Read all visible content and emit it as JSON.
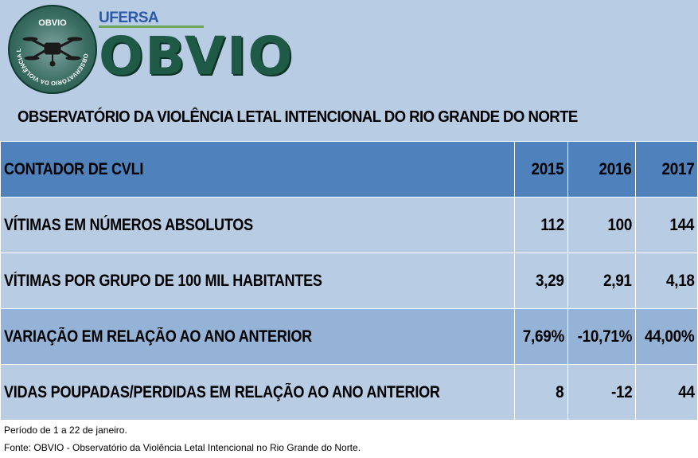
{
  "header": {
    "emblem_text": "OBVIO",
    "emblem_ring_text": "OBSERVATÓRIO DA VIOLÊNCIA LETAL INTENCIONAL",
    "ufersa": "UFERSA",
    "logo": "OBVIO",
    "title": "OBSERVATÓRIO DA VIOLÊNCIA LETAL INTENCIONAL DO RIO GRANDE DO NORTE"
  },
  "table": {
    "headers": [
      "CONTADOR DE CVLI",
      "2015",
      "2016",
      "2017"
    ],
    "rows": [
      {
        "label": "VÍTIMAS EM NÚMEROS ABSOLUTOS",
        "v2015": "112",
        "v2016": "100",
        "v2017": "144"
      },
      {
        "label": "VÍTIMAS POR GRUPO DE 100 MIL HABITANTES",
        "v2015": "3,29",
        "v2016": "2,91",
        "v2017": "4,18"
      },
      {
        "label": "VARIAÇÃO EM RELAÇÃO AO ANO ANTERIOR",
        "v2015": "7,69%",
        "v2016": "-10,71%",
        "v2017": "44,00%"
      },
      {
        "label": "VIDAS POUPADAS/PERDIDAS EM RELAÇÃO AO ANO ANTERIOR",
        "v2015": "8",
        "v2016": "-12",
        "v2017": "44"
      }
    ]
  },
  "footnotes": {
    "period": "Período de 1 a 22 de janeiro.",
    "source": "Fonte: OBVIO - Observatório da Violência Letal Intencional no Rio Grande do Norte."
  },
  "colors": {
    "header_panel": "#b8cce4",
    "table_header": "#4f81bd",
    "row_dark": "#95b3d7",
    "row_light": "#b8cce4",
    "logo_green": "#1f5a47",
    "ufersa_blue": "#2b58a8"
  }
}
